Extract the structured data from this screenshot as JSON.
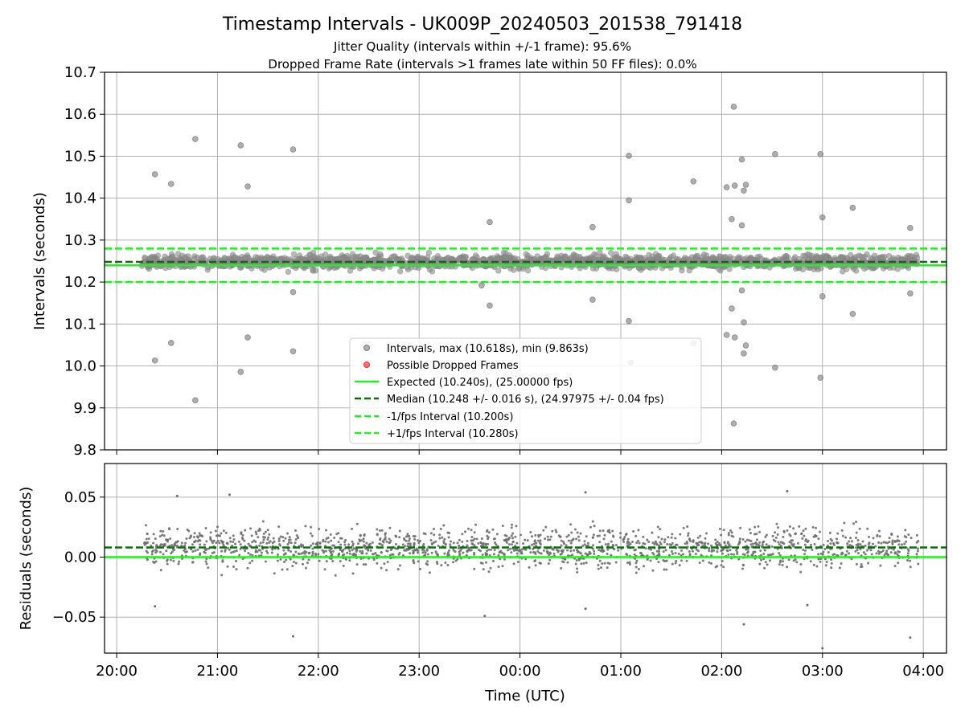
{
  "chart_data": {
    "type": "scatter",
    "title": "Timestamp Intervals - UK009P_20240503_201538_791418",
    "subtitle_lines": [
      "Jitter Quality (intervals within +/-1 frame): 95.6%",
      "Dropped Frame Rate (intervals >1 frames late within 50 FF files): 0.0%"
    ],
    "xlabel": "Time (UTC)",
    "x_ticks": [
      "20:00",
      "21:00",
      "22:00",
      "23:00",
      "00:00",
      "01:00",
      "02:00",
      "03:00",
      "04:00"
    ],
    "x_range_hours": [
      19.88,
      28.23
    ],
    "data_x_range_hours": [
      20.25,
      27.95
    ],
    "grid": true,
    "panels": [
      {
        "name": "intervals",
        "ylabel": "Intervals (seconds)",
        "ylim": [
          9.8,
          10.7
        ],
        "y_ticks": [
          "9.8",
          "9.9",
          "10.0",
          "10.1",
          "10.2",
          "10.3",
          "10.4",
          "10.5",
          "10.6",
          "10.7"
        ],
        "legend": {
          "placement": "lower-center",
          "entries": [
            "Intervals, max (10.618s), min (9.863s)",
            "Possible Dropped Frames",
            "Expected (10.240s), (25.00000 fps)",
            "Median (10.248 +/- 0.016 s), (24.97975 +/- 0.04 fps)",
            "-1/fps Interval (10.200s)",
            "+1/fps Interval (10.280s)"
          ]
        },
        "reference_lines": {
          "expected": 10.24,
          "median": 10.248,
          "minus_one_frame": 10.2,
          "plus_one_frame": 10.28
        },
        "dense_band": [
          10.2,
          10.29
        ],
        "outliers": [
          {
            "x": 20.38,
            "y": 10.457
          },
          {
            "x": 20.38,
            "y": 10.013
          },
          {
            "x": 20.54,
            "y": 10.434
          },
          {
            "x": 20.54,
            "y": 10.055
          },
          {
            "x": 20.78,
            "y": 10.541
          },
          {
            "x": 20.78,
            "y": 9.918
          },
          {
            "x": 21.23,
            "y": 10.526
          },
          {
            "x": 21.23,
            "y": 9.986
          },
          {
            "x": 21.3,
            "y": 10.428
          },
          {
            "x": 21.3,
            "y": 10.068
          },
          {
            "x": 21.75,
            "y": 10.516
          },
          {
            "x": 21.75,
            "y": 10.176
          },
          {
            "x": 21.75,
            "y": 10.035
          },
          {
            "x": 23.7,
            "y": 10.343
          },
          {
            "x": 23.7,
            "y": 10.144
          },
          {
            "x": 23.62,
            "y": 10.192
          },
          {
            "x": 24.72,
            "y": 10.331
          },
          {
            "x": 24.72,
            "y": 10.158
          },
          {
            "x": 25.08,
            "y": 10.501
          },
          {
            "x": 25.08,
            "y": 10.395
          },
          {
            "x": 25.08,
            "y": 10.107
          },
          {
            "x": 25.1,
            "y": 10.008
          },
          {
            "x": 25.72,
            "y": 10.44
          },
          {
            "x": 25.72,
            "y": 10.054
          },
          {
            "x": 26.05,
            "y": 10.426
          },
          {
            "x": 26.05,
            "y": 10.074
          },
          {
            "x": 26.1,
            "y": 10.35
          },
          {
            "x": 26.1,
            "y": 10.137
          },
          {
            "x": 26.12,
            "y": 10.618
          },
          {
            "x": 26.13,
            "y": 10.43
          },
          {
            "x": 26.13,
            "y": 10.068
          },
          {
            "x": 26.12,
            "y": 9.863
          },
          {
            "x": 26.2,
            "y": 10.492
          },
          {
            "x": 26.2,
            "y": 10.335
          },
          {
            "x": 26.22,
            "y": 10.418
          },
          {
            "x": 26.24,
            "y": 10.432
          },
          {
            "x": 26.22,
            "y": 10.104
          },
          {
            "x": 26.22,
            "y": 10.03
          },
          {
            "x": 26.24,
            "y": 10.049
          },
          {
            "x": 26.2,
            "y": 10.18
          },
          {
            "x": 26.53,
            "y": 10.505
          },
          {
            "x": 26.53,
            "y": 9.996
          },
          {
            "x": 26.98,
            "y": 10.505
          },
          {
            "x": 27.0,
            "y": 10.354
          },
          {
            "x": 27.0,
            "y": 10.166
          },
          {
            "x": 26.98,
            "y": 9.972
          },
          {
            "x": 27.3,
            "y": 10.377
          },
          {
            "x": 27.3,
            "y": 10.124
          },
          {
            "x": 27.87,
            "y": 10.329
          },
          {
            "x": 27.87,
            "y": 10.173
          }
        ]
      },
      {
        "name": "residuals",
        "ylabel": "Residuals (seconds)",
        "ylim": [
          -0.08,
          0.078
        ],
        "y_ticks": [
          "−0.05",
          "0.00",
          "0.05"
        ],
        "reference_lines": {
          "zero": 0.0,
          "median_offset": 0.008
        },
        "dense_band": [
          -0.035,
          0.05
        ],
        "outliers": [
          {
            "x": 20.38,
            "y": -0.041
          },
          {
            "x": 20.6,
            "y": 0.051
          },
          {
            "x": 21.12,
            "y": 0.052
          },
          {
            "x": 21.75,
            "y": -0.066
          },
          {
            "x": 23.65,
            "y": -0.049
          },
          {
            "x": 24.65,
            "y": 0.054
          },
          {
            "x": 24.65,
            "y": -0.043
          },
          {
            "x": 26.22,
            "y": -0.056
          },
          {
            "x": 26.65,
            "y": 0.055
          },
          {
            "x": 26.85,
            "y": -0.04
          },
          {
            "x": 27.0,
            "y": -0.076
          },
          {
            "x": 27.87,
            "y": -0.067
          }
        ]
      }
    ],
    "colors": {
      "points": "#8c8c8c",
      "dropped": "#ff4d4d",
      "expected": "#22ee22",
      "median": "#0a6e0a",
      "interval_lines": "#22ee22",
      "grid": "#b0b0b0"
    }
  }
}
